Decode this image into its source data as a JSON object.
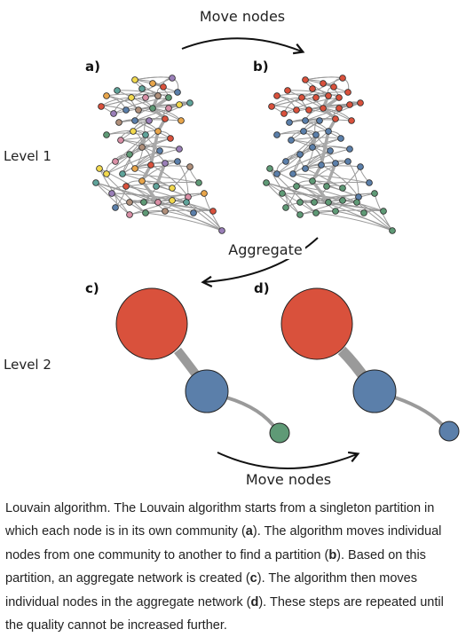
{
  "labels": {
    "move_nodes_top": "Move nodes",
    "move_nodes_bottom": "Move nodes",
    "aggregate": "Aggregate",
    "level1": "Level 1",
    "level2": "Level 2",
    "panel_a": "a)",
    "panel_b": "b)",
    "panel_c": "c)",
    "panel_d": "d)"
  },
  "colors": {
    "red": "#d9513c",
    "blue": "#5b7faa",
    "green": "#5f9a76",
    "yellow": "#f2d94e",
    "orange": "#e8a54b",
    "purple": "#9a7fb8",
    "brown": "#b08f7a",
    "pink": "#d98fa6",
    "teal": "#5fa39a",
    "edge": "#999999"
  },
  "caption": {
    "p1": "Louvain algorithm. The Louvain algorithm starts from a singleton partition in which each node is in its own community (",
    "b1": "a",
    "p2": "). The algorithm moves individual nodes from one community to another to find a partition (",
    "b2": "b",
    "p3": "). Based on this partition, an aggregate network is created (",
    "b3": "c",
    "p4": "). The algorithm then moves individual nodes in the aggregate network (",
    "b4": "d",
    "p5": "). These steps are repeated until the quality cannot be increased further."
  }
}
